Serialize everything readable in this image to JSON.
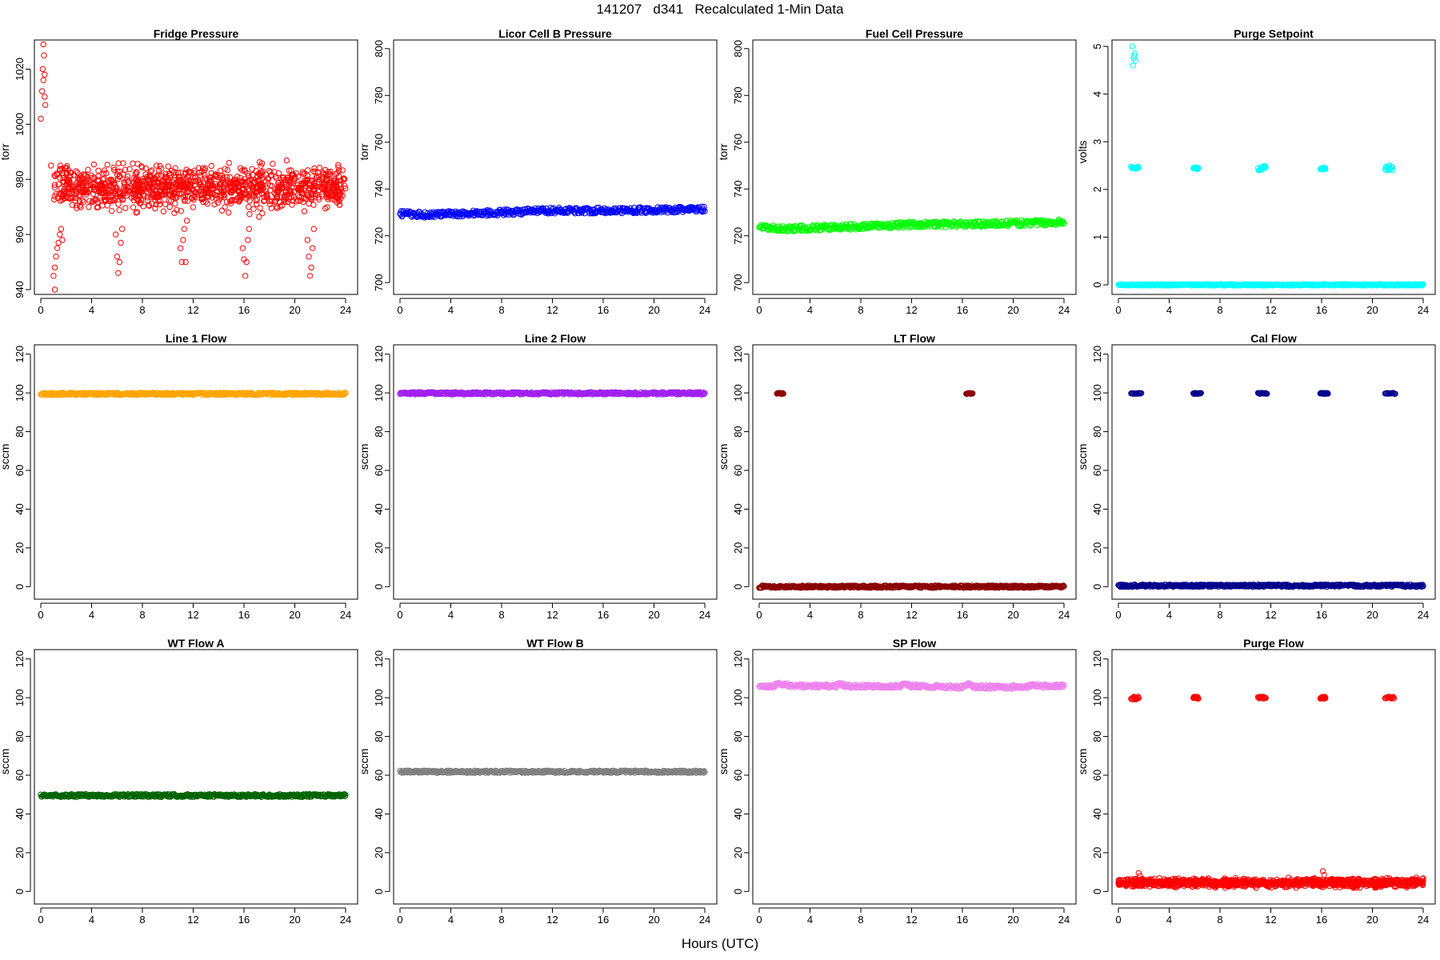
{
  "figure": {
    "title": "141207   d341   Recalculated 1-Min Data",
    "xlabel": "Hours (UTC)"
  },
  "chart_data": [
    {
      "type": "scatter",
      "title": "Fridge Pressure",
      "ylabel": "torr",
      "color": "#ff0000",
      "xlim": [
        0,
        24
      ],
      "ylim": [
        940,
        1030
      ],
      "xticks": [
        0,
        4,
        8,
        12,
        16,
        20,
        24
      ],
      "yticks": [
        940,
        960,
        980,
        1000,
        1020
      ],
      "series": [
        {
          "kind": "noise",
          "x": [
            1.0,
            24.0
          ],
          "y": [
            966,
            988
          ],
          "n": 1150
        },
        {
          "kind": "points",
          "x": [
            0.0,
            0.1,
            0.15,
            0.2,
            0.2,
            0.25,
            0.3,
            0.3,
            0.35
          ],
          "y": [
            1002,
            1012,
            1020,
            1016,
            1029,
            1025,
            1018,
            1010,
            1007
          ]
        },
        {
          "kind": "points",
          "x": [
            0.8,
            1.0,
            1.1,
            1.1,
            1.2,
            1.3,
            1.4,
            1.5,
            1.6,
            1.7
          ],
          "y": [
            985,
            945,
            940,
            948,
            952,
            955,
            957,
            960,
            962,
            958
          ]
        },
        {
          "kind": "points",
          "x": [
            5.9,
            6.0,
            6.1,
            6.2,
            6.3,
            6.4
          ],
          "y": [
            960,
            952,
            946,
            950,
            957,
            962
          ]
        },
        {
          "kind": "points",
          "x": [
            11.0,
            11.1,
            11.2,
            11.3,
            11.4,
            11.5
          ],
          "y": [
            955,
            950,
            958,
            962,
            950,
            965
          ]
        },
        {
          "kind": "points",
          "x": [
            15.9,
            16.0,
            16.1,
            16.2,
            16.3,
            16.4
          ],
          "y": [
            955,
            951,
            945,
            950,
            958,
            962
          ]
        },
        {
          "kind": "points",
          "x": [
            21.0,
            21.1,
            21.2,
            21.3,
            21.4,
            21.5
          ],
          "y": [
            958,
            952,
            945,
            948,
            955,
            962
          ]
        }
      ]
    },
    {
      "type": "scatter",
      "title": "Licor Cell B Pressure",
      "ylabel": "torr",
      "color": "#0000ff",
      "xlim": [
        0,
        24
      ],
      "ylim": [
        697,
        803
      ],
      "xticks": [
        0,
        4,
        8,
        12,
        16,
        20,
        24
      ],
      "yticks": [
        700,
        720,
        740,
        760,
        780,
        800
      ],
      "series": [
        {
          "kind": "band",
          "x": [
            0,
            2,
            8,
            12,
            16,
            20,
            24
          ],
          "y": [
            729.5,
            729,
            730,
            730.8,
            730.8,
            731,
            731.3
          ],
          "w": 2.5
        }
      ]
    },
    {
      "type": "scatter",
      "title": "Fuel Cell Pressure",
      "ylabel": "torr",
      "color": "#00ff00",
      "xlim": [
        0,
        24
      ],
      "ylim": [
        697,
        803
      ],
      "xticks": [
        0,
        4,
        8,
        12,
        16,
        20,
        24
      ],
      "yticks": [
        700,
        720,
        740,
        760,
        780,
        800
      ],
      "series": [
        {
          "kind": "band",
          "x": [
            0,
            2,
            8,
            12,
            16,
            20,
            24
          ],
          "y": [
            723.5,
            723,
            724,
            724.8,
            725,
            725.3,
            725.8
          ],
          "w": 2.5
        }
      ]
    },
    {
      "type": "scatter",
      "title": "Purge Setpoint",
      "ylabel": "volts",
      "color": "#00ffff",
      "xlim": [
        0,
        24
      ],
      "ylim": [
        -0.1,
        5.1
      ],
      "xticks": [
        0,
        4,
        8,
        12,
        16,
        20,
        24
      ],
      "yticks": [
        0,
        1,
        2,
        3,
        4,
        5
      ],
      "series": [
        {
          "kind": "band",
          "x": [
            0,
            24
          ],
          "y": [
            0,
            0
          ],
          "w": 0.03
        },
        {
          "kind": "points",
          "x": [
            1.1,
            1.15,
            1.2,
            1.25,
            1.3,
            1.35
          ],
          "y": [
            5.0,
            4.6,
            4.75,
            4.8,
            4.85,
            4.7
          ]
        },
        {
          "kind": "blob",
          "x": [
            1.0,
            1.6
          ],
          "y": [
            2.42,
            2.48
          ]
        },
        {
          "kind": "blob",
          "x": [
            5.9,
            6.3
          ],
          "y": [
            2.42,
            2.46
          ]
        },
        {
          "kind": "blob",
          "x": [
            11.0,
            11.6
          ],
          "y": [
            2.4,
            2.5
          ]
        },
        {
          "kind": "blob",
          "x": [
            15.9,
            16.3
          ],
          "y": [
            2.42,
            2.46
          ]
        },
        {
          "kind": "blob",
          "x": [
            21.0,
            21.6
          ],
          "y": [
            2.4,
            2.52
          ]
        }
      ]
    },
    {
      "type": "scatter",
      "title": "Line 1 Flow",
      "ylabel": "sccm",
      "color": "#ffa500",
      "xlim": [
        0,
        24
      ],
      "ylim": [
        -4,
        124
      ],
      "xticks": [
        0,
        4,
        8,
        12,
        16,
        20,
        24
      ],
      "yticks": [
        0,
        20,
        40,
        60,
        80,
        100,
        120
      ],
      "series": [
        {
          "kind": "band",
          "x": [
            0,
            24
          ],
          "y": [
            99.5,
            99.5
          ],
          "w": 1.2
        }
      ]
    },
    {
      "type": "scatter",
      "title": "Line 2 Flow",
      "ylabel": "sccm",
      "color": "#a020f0",
      "xlim": [
        0,
        24
      ],
      "ylim": [
        -4,
        124
      ],
      "xticks": [
        0,
        4,
        8,
        12,
        16,
        20,
        24
      ],
      "yticks": [
        0,
        20,
        40,
        60,
        80,
        100,
        120
      ],
      "series": [
        {
          "kind": "band",
          "x": [
            0,
            24
          ],
          "y": [
            99.8,
            99.8
          ],
          "w": 1.2
        }
      ]
    },
    {
      "type": "scatter",
      "title": "LT Flow",
      "ylabel": "sccm",
      "color": "#8b0000",
      "xlim": [
        0,
        24
      ],
      "ylim": [
        -4,
        124
      ],
      "xticks": [
        0,
        4,
        8,
        12,
        16,
        20,
        24
      ],
      "yticks": [
        0,
        20,
        40,
        60,
        80,
        100,
        120
      ],
      "series": [
        {
          "kind": "band",
          "x": [
            0,
            24
          ],
          "y": [
            0,
            0
          ],
          "w": 1.2
        },
        {
          "kind": "blob",
          "x": [
            1.4,
            1.9
          ],
          "y": [
            99.5,
            100
          ]
        },
        {
          "kind": "blob",
          "x": [
            16.3,
            16.8
          ],
          "y": [
            99.5,
            100
          ]
        }
      ]
    },
    {
      "type": "scatter",
      "title": "Cal Flow",
      "ylabel": "sccm",
      "color": "#00008b",
      "xlim": [
        0,
        24
      ],
      "ylim": [
        -4,
        124
      ],
      "xticks": [
        0,
        4,
        8,
        12,
        16,
        20,
        24
      ],
      "yticks": [
        0,
        20,
        40,
        60,
        80,
        100,
        120
      ],
      "series": [
        {
          "kind": "band",
          "x": [
            0,
            24
          ],
          "y": [
            0.5,
            0.5
          ],
          "w": 1.2
        },
        {
          "kind": "blob",
          "x": [
            1.0,
            1.8
          ],
          "y": [
            99.5,
            100
          ]
        },
        {
          "kind": "blob",
          "x": [
            5.9,
            6.5
          ],
          "y": [
            99.5,
            100
          ]
        },
        {
          "kind": "blob",
          "x": [
            11.0,
            11.7
          ],
          "y": [
            99.5,
            100
          ]
        },
        {
          "kind": "blob",
          "x": [
            15.9,
            16.5
          ],
          "y": [
            99.5,
            100
          ]
        },
        {
          "kind": "blob",
          "x": [
            21.0,
            21.8
          ],
          "y": [
            99.5,
            100
          ]
        }
      ]
    },
    {
      "type": "scatter",
      "title": "WT Flow A",
      "ylabel": "sccm",
      "color": "#006400",
      "xlim": [
        0,
        24
      ],
      "ylim": [
        -4,
        124
      ],
      "xticks": [
        0,
        4,
        8,
        12,
        16,
        20,
        24
      ],
      "yticks": [
        0,
        20,
        40,
        60,
        80,
        100,
        120
      ],
      "series": [
        {
          "kind": "band",
          "x": [
            0,
            24
          ],
          "y": [
            49.5,
            49.5
          ],
          "w": 1.5
        }
      ]
    },
    {
      "type": "scatter",
      "title": "WT Flow B",
      "ylabel": "sccm",
      "color": "#808080",
      "xlim": [
        0,
        24
      ],
      "ylim": [
        -4,
        124
      ],
      "xticks": [
        0,
        4,
        8,
        12,
        16,
        20,
        24
      ],
      "yticks": [
        0,
        20,
        40,
        60,
        80,
        100,
        120
      ],
      "series": [
        {
          "kind": "band",
          "x": [
            0,
            24
          ],
          "y": [
            61.8,
            61.8
          ],
          "w": 1.2
        }
      ]
    },
    {
      "type": "scatter",
      "title": "SP Flow",
      "ylabel": "sccm",
      "color": "#ee82ee",
      "xlim": [
        0,
        24
      ],
      "ylim": [
        -4,
        124
      ],
      "xticks": [
        0,
        4,
        8,
        12,
        16,
        20,
        24
      ],
      "yticks": [
        0,
        20,
        40,
        60,
        80,
        100,
        120
      ],
      "series": [
        {
          "kind": "band",
          "x": [
            0,
            1.0,
            1.5,
            1.9,
            2.5,
            6.0,
            6.4,
            6.8,
            11.1,
            11.5,
            11.9,
            16.1,
            16.5,
            16.9,
            21.1,
            21.5,
            21.9,
            24
          ],
          "y": [
            106,
            106,
            107,
            107,
            106,
            106,
            107,
            106,
            106,
            107,
            106,
            105.5,
            107,
            105.5,
            105.5,
            107,
            106,
            106
          ],
          "w": 1.8
        }
      ]
    },
    {
      "type": "scatter",
      "title": "Purge Flow",
      "ylabel": "sccm",
      "color": "#ff0000",
      "xlim": [
        0,
        24
      ],
      "ylim": [
        -4,
        124
      ],
      "xticks": [
        0,
        4,
        8,
        12,
        16,
        20,
        24
      ],
      "yticks": [
        0,
        20,
        40,
        60,
        80,
        100,
        120
      ],
      "series": [
        {
          "kind": "noise",
          "x": [
            0.0,
            24.0
          ],
          "y": [
            1.5,
            7.5
          ],
          "n": 1250
        },
        {
          "kind": "points",
          "x": [
            0.0,
            0.1,
            0.2,
            1.6,
            1.7,
            16.1,
            16.2
          ],
          "y": [
            4.5,
            6.0,
            3.5,
            9.5,
            8.0,
            10.5,
            8.5
          ]
        },
        {
          "kind": "blob",
          "x": [
            1.0,
            1.6
          ],
          "y": [
            99,
            100.5
          ]
        },
        {
          "kind": "blob",
          "x": [
            5.9,
            6.3
          ],
          "y": [
            99.5,
            100.5
          ]
        },
        {
          "kind": "blob",
          "x": [
            11.0,
            11.6
          ],
          "y": [
            99.5,
            100.5
          ]
        },
        {
          "kind": "blob",
          "x": [
            15.9,
            16.3
          ],
          "y": [
            99.5,
            100.5
          ]
        },
        {
          "kind": "blob",
          "x": [
            21.0,
            21.7
          ],
          "y": [
            99.5,
            100.5
          ]
        }
      ]
    }
  ]
}
